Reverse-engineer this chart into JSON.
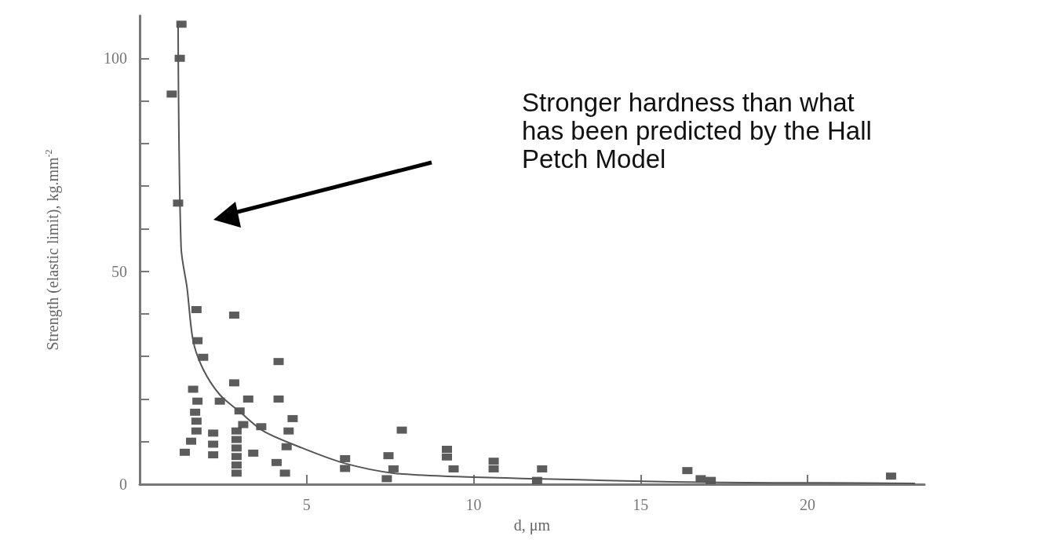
{
  "chart_data": {
    "type": "scatter",
    "xlabel": "d, μm",
    "ylabel": "Strength (elastic limit), kg.mm$^{-2}$",
    "xlim": [
      0,
      23.5
    ],
    "xticks": [
      5,
      10,
      15,
      20
    ],
    "ylim": [
      0,
      110
    ],
    "yticks": [
      0,
      {
        "value": 10,
        "label": null
      },
      {
        "value": 20,
        "label": null
      },
      {
        "value": 30,
        "label": null
      },
      {
        "value": 40,
        "label": null
      },
      50,
      {
        "value": 60,
        "label": null
      },
      {
        "value": 70,
        "label": null
      },
      {
        "value": 80,
        "label": null
      },
      {
        "value": 90,
        "label": null
      },
      100
    ],
    "grid": false,
    "marker": "square",
    "annotations": [
      "Stronger hardness than what has been predicted by the Hall Petch Model"
    ],
    "series": [
      {
        "color": "#333333",
        "x": [
          1.25,
          1.2,
          0.96,
          1.15,
          1.7,
          1.73,
          1.9,
          2.83,
          4.16,
          1.6,
          1.73,
          1.66,
          1.7,
          1.7,
          1.54,
          1.35,
          2.83,
          2.4,
          3.25,
          4.16,
          2.99,
          3.1,
          3.64,
          4.58,
          4.46,
          2.2,
          2.2,
          2.2,
          2.9,
          2.9,
          2.9,
          2.9,
          2.9,
          2.9,
          3.4,
          4.4,
          4.1,
          4.35,
          6.15,
          6.15,
          7.85,
          7.45,
          7.6,
          7.4,
          9.2,
          9.2,
          9.4,
          10.6,
          10.6,
          12.05,
          11.9,
          16.4,
          16.8,
          17.1,
          22.5
        ],
        "values": [
          108,
          100,
          91.6,
          66,
          41,
          33.7,
          29.8,
          39.7,
          28.8,
          22.3,
          19.5,
          16.9,
          14.8,
          12.5,
          10.1,
          7.5,
          23.8,
          19.5,
          20,
          20,
          17.2,
          14,
          13.5,
          15.4,
          12.5,
          12,
          9.4,
          6.9,
          12.5,
          10.5,
          8.5,
          6.5,
          4.5,
          2.6,
          7.3,
          8.8,
          5.1,
          2.6,
          6,
          3.7,
          12.7,
          6.7,
          3.6,
          1.3,
          8.2,
          6.4,
          3.6,
          5.4,
          3.6,
          3.6,
          0.9,
          3.2,
          1.3,
          0.9,
          1.9
        ]
      },
      {
        "type": "line",
        "color": "#555555",
        "marker": "none",
        "x": [
          1.15,
          1.24,
          1.42,
          1.6,
          1.9,
          2.4,
          3.0,
          3.7,
          4.77,
          6.1,
          7.6,
          9.5,
          11.8,
          14.5,
          17.4,
          20.5,
          23.2
        ],
        "values": [
          108,
          55.6,
          46,
          33.7,
          27,
          21,
          17,
          12.5,
          8.8,
          5,
          2.6,
          1.8,
          1.3,
          0.8,
          0.4,
          0.3,
          0.2
        ]
      }
    ]
  }
}
